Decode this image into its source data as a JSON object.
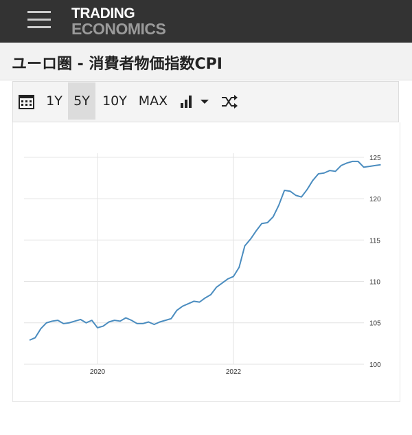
{
  "header": {
    "logo_top": "TRADING",
    "logo_bottom": "ECONOMICS"
  },
  "page_title": "ユーロ圏 - 消費者物価指数CPI",
  "toolbar": {
    "buttons": [
      "1Y",
      "5Y",
      "10Y",
      "MAX"
    ],
    "selected": "5Y"
  },
  "chart_data": {
    "type": "line",
    "categories": [
      null,
      null,
      null,
      null,
      null,
      null,
      null,
      null,
      null,
      null,
      null,
      null,
      "2020",
      null,
      null,
      null,
      null,
      null,
      null,
      null,
      null,
      null,
      null,
      null,
      null,
      null,
      null,
      null,
      null,
      null,
      null,
      null,
      null,
      null,
      null,
      null,
      "2022",
      null,
      null,
      null,
      null,
      null,
      null,
      null,
      null,
      null,
      null,
      null,
      null,
      null,
      null,
      null,
      null,
      null,
      null,
      null,
      null,
      null,
      null,
      null,
      null,
      null,
      null
    ],
    "series": [
      {
        "color": "#4a8cbf",
        "values": [
          102.9,
          103.2,
          104.3,
          105.0,
          105.2,
          105.3,
          104.9,
          105.0,
          105.2,
          105.4,
          105.0,
          105.3,
          104.4,
          104.6,
          105.1,
          105.3,
          105.2,
          105.6,
          105.3,
          104.9,
          104.9,
          105.1,
          104.8,
          105.1,
          105.3,
          105.5,
          106.5,
          107.0,
          107.3,
          107.6,
          107.5,
          108.0,
          108.4,
          109.3,
          109.8,
          110.3,
          110.6,
          111.7,
          114.3,
          115.1,
          116.1,
          117.0,
          117.1,
          117.8,
          119.2,
          121.0,
          120.9,
          120.4,
          120.2,
          121.1,
          122.2,
          123.0,
          123.1,
          123.4,
          123.3,
          124.0,
          124.3,
          124.5,
          124.5,
          123.8,
          123.9,
          124.0,
          124.1
        ]
      }
    ],
    "ylim": [
      98.75,
      126.15
    ],
    "yticks": [
      100,
      105,
      110,
      115,
      120,
      125
    ],
    "grid": true
  }
}
